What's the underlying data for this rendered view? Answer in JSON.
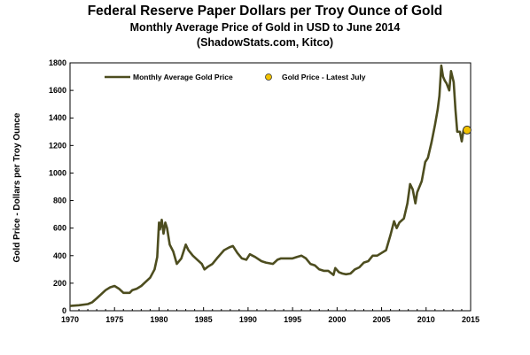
{
  "chart_data": {
    "type": "line",
    "title": "Federal Reserve Paper Dollars per Troy Ounce of Gold",
    "subtitle": "Monthly Average Price of Gold in USD to June 2014",
    "source": "(ShadowStats.com, Kitco)",
    "xlabel": "",
    "ylabel": "Gold Price - Dollars per Troy Ounce",
    "xlim": [
      1970,
      2015
    ],
    "ylim": [
      0,
      1800
    ],
    "x_ticks": [
      "1970",
      "1975",
      "1980",
      "1985",
      "1990",
      "1995",
      "2000",
      "2005",
      "2010",
      "2015"
    ],
    "y_ticks": [
      "0",
      "200",
      "400",
      "600",
      "800",
      "1000",
      "1200",
      "1400",
      "1600",
      "1800"
    ],
    "grid": false,
    "legend_position": "top",
    "series": [
      {
        "name": "Monthly Average Gold Price",
        "color": "#4d4d1f",
        "x": [
          1970,
          1971,
          1972,
          1972.5,
          1973,
          1973.5,
          1974,
          1974.5,
          1975,
          1975.5,
          1976,
          1976.7,
          1977,
          1977.5,
          1978,
          1978.5,
          1979,
          1979.5,
          1979.8,
          1980.0,
          1980.1,
          1980.3,
          1980.5,
          1980.7,
          1980.9,
          1981.2,
          1981.6,
          1982.0,
          1982.5,
          1983.0,
          1983.3,
          1983.8,
          1984.3,
          1984.8,
          1985.1,
          1985.5,
          1986.0,
          1986.5,
          1986.9,
          1987.3,
          1987.9,
          1988.3,
          1988.8,
          1989.3,
          1989.8,
          1990.2,
          1990.8,
          1991.5,
          1992.0,
          1992.8,
          1993.3,
          1993.7,
          1994.5,
          1995.0,
          1995.5,
          1996.0,
          1996.5,
          1997.0,
          1997.5,
          1998.0,
          1998.5,
          1999.0,
          1999.6,
          1999.8,
          2000.2,
          2000.6,
          2001.0,
          2001.5,
          2002.0,
          2002.5,
          2003.0,
          2003.5,
          2004.0,
          2004.5,
          2005.0,
          2005.5,
          2006.0,
          2006.4,
          2006.7,
          2007.0,
          2007.5,
          2007.9,
          2008.2,
          2008.5,
          2008.8,
          2009.0,
          2009.5,
          2009.9,
          2010.2,
          2010.6,
          2011.0,
          2011.3,
          2011.5,
          2011.7,
          2011.9,
          2012.1,
          2012.3,
          2012.6,
          2012.8,
          2013.1,
          2013.3,
          2013.5,
          2013.8,
          2014.0,
          2014.2,
          2014.4
        ],
        "y": [
          35,
          40,
          48,
          62,
          90,
          120,
          150,
          170,
          180,
          160,
          130,
          130,
          150,
          160,
          180,
          210,
          240,
          300,
          390,
          640,
          590,
          660,
          560,
          640,
          600,
          480,
          430,
          340,
          380,
          480,
          440,
          400,
          370,
          340,
          300,
          320,
          340,
          380,
          410,
          440,
          460,
          470,
          420,
          380,
          370,
          410,
          390,
          360,
          350,
          340,
          370,
          380,
          380,
          380,
          390,
          400,
          380,
          340,
          330,
          300,
          290,
          290,
          260,
          310,
          280,
          270,
          265,
          270,
          300,
          315,
          350,
          360,
          400,
          400,
          420,
          440,
          550,
          650,
          600,
          640,
          670,
          780,
          920,
          880,
          780,
          860,
          940,
          1080,
          1110,
          1220,
          1350,
          1460,
          1560,
          1780,
          1700,
          1670,
          1650,
          1600,
          1740,
          1660,
          1460,
          1300,
          1300,
          1230,
          1310,
          1290
        ]
      }
    ],
    "highlight_point": {
      "name": "Gold Price - Latest July",
      "x": 2014.6,
      "y": 1312,
      "color": "#f2c200"
    }
  }
}
